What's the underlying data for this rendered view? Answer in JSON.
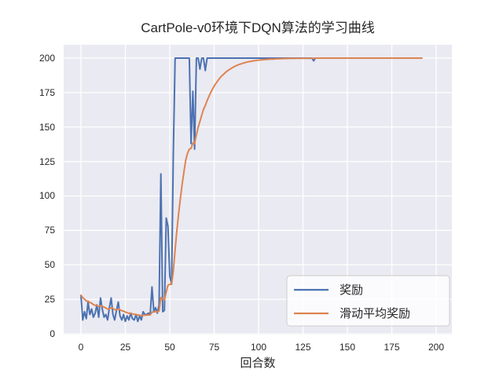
{
  "figure": {
    "title": "CartPole-v0环境下DQN算法的学习曲线",
    "xlabel": "回合数",
    "background_color": "#ffffff",
    "plot_background_color": "#eaeaf2",
    "grid_color": "#ffffff",
    "text_color": "#262626"
  },
  "legend": {
    "entries": [
      {
        "label": "奖励",
        "color": "#4c72b0"
      },
      {
        "label": "滑动平均奖励",
        "color": "#dd8452"
      }
    ]
  },
  "chart_data": {
    "type": "line",
    "title": "CartPole-v0环境下DQN算法的学习曲线",
    "xlabel": "回合数",
    "ylabel": "",
    "grid": true,
    "legend_position": "lower right",
    "xlim": [
      -10,
      210
    ],
    "ylim": [
      -1,
      210
    ],
    "xticks": [
      0,
      25,
      50,
      75,
      100,
      125,
      150,
      175,
      200
    ],
    "yticks": [
      0,
      25,
      50,
      75,
      100,
      125,
      150,
      175,
      200
    ],
    "x_start": 0,
    "x_step": 1,
    "n_points": 201,
    "series": [
      {
        "name": "奖励",
        "color": "#4c72b0",
        "values": [
          28,
          10,
          16,
          11,
          23,
          14,
          18,
          12,
          15,
          21,
          12,
          26,
          18,
          12,
          14,
          10,
          19,
          26,
          14,
          10,
          17,
          23,
          13,
          10,
          14,
          9,
          13,
          10,
          15,
          11,
          10,
          14,
          9,
          13,
          10,
          16,
          14,
          14,
          15,
          14,
          34,
          16,
          19,
          15,
          21,
          116,
          16,
          17,
          84,
          78,
          42,
          36,
          130,
          200,
          200,
          200,
          200,
          200,
          200,
          200,
          200,
          200,
          138,
          176,
          134,
          200,
          200,
          192,
          200,
          200,
          191,
          200,
          200,
          200,
          200,
          200,
          200,
          200,
          200,
          200,
          200,
          200,
          200,
          200,
          200,
          200,
          200,
          200,
          200,
          200,
          200,
          200,
          200,
          200,
          200,
          200,
          200,
          200,
          200,
          200,
          200,
          200,
          200,
          200,
          200,
          200,
          200,
          200,
          200,
          200,
          200,
          200,
          200,
          200,
          200,
          200,
          200,
          200,
          200,
          200,
          200,
          200,
          200,
          200,
          200,
          200,
          200,
          200,
          200,
          200,
          200,
          198,
          200,
          200,
          200,
          200,
          200,
          200,
          200,
          200,
          200,
          200,
          200,
          200,
          200,
          200,
          200,
          200,
          200,
          200,
          200,
          200,
          200,
          200,
          200,
          200,
          200,
          200,
          200,
          200,
          200,
          200,
          200,
          200,
          200,
          200,
          200,
          200,
          200,
          200,
          200,
          200,
          200,
          200,
          200,
          200,
          200,
          200,
          200,
          200,
          200
        ]
      },
      {
        "name": "滑动平均奖励",
        "color": "#dd8452",
        "values": [
          28.0,
          26.2,
          25.2,
          23.8,
          23.7,
          22.7,
          22.2,
          21.2,
          20.6,
          20.6,
          19.7,
          20.4,
          20.1,
          19.3,
          18.8,
          17.9,
          18.0,
          18.8,
          18.3,
          17.5,
          17.4,
          18.0,
          17.5,
          16.7,
          16.5,
          15.7,
          15.4,
          14.9,
          14.9,
          14.5,
          14.1,
          14.1,
          13.6,
          13.5,
          13.2,
          13.4,
          13.5,
          13.5,
          13.7,
          13.7,
          15.7,
          15.8,
          16.1,
          16.0,
          16.5,
          26.4,
          25.4,
          24.5,
          30.5,
          35.2,
          35.9,
          35.9,
          45.3,
          60.8,
          74.7,
          87.3,
          98.5,
          108.7,
          117.8,
          126.0,
          131.0,
          134.0,
          134.4,
          138.5,
          138.1,
          144.3,
          149.9,
          154.1,
          158.7,
          162.8,
          165.6,
          169.1,
          172.1,
          174.9,
          177.4,
          179.7,
          181.7,
          183.5,
          185.2,
          186.7,
          188.0,
          189.2,
          190.3,
          191.2,
          192.1,
          192.9,
          193.6,
          194.3,
          194.8,
          195.4,
          195.8,
          196.2,
          196.6,
          197.0,
          197.3,
          197.5,
          197.8,
          198.0,
          198.2,
          198.4,
          198.5,
          198.7,
          198.8,
          198.9,
          199.0,
          199.1,
          199.2,
          199.3,
          199.3,
          199.4,
          199.5,
          199.5,
          199.6,
          199.6,
          199.7,
          199.7,
          199.7,
          199.8,
          199.8,
          199.8,
          199.8,
          199.9,
          199.9,
          199.9,
          199.9,
          199.9,
          199.9,
          199.9,
          199.9,
          199.9,
          199.9,
          199.9,
          200,
          200,
          200,
          200,
          200,
          200,
          200,
          200,
          200,
          200,
          200,
          200,
          200,
          200,
          200,
          200,
          200,
          200,
          200,
          200,
          200,
          200,
          200,
          200,
          200,
          200,
          200,
          200,
          200,
          200,
          200,
          200,
          200,
          200,
          200,
          200,
          200,
          200,
          200,
          200,
          200,
          200,
          200,
          200,
          200,
          200,
          200,
          200,
          200,
          200,
          200,
          200,
          200,
          200,
          200,
          200,
          200,
          200,
          200,
          200,
          200
        ]
      }
    ]
  }
}
